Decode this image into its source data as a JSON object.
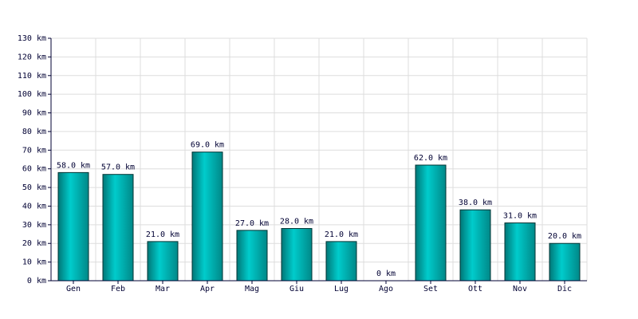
{
  "chart_data": {
    "type": "bar",
    "categories": [
      "Gen",
      "Feb",
      "Mar",
      "Apr",
      "Mag",
      "Giu",
      "Lug",
      "Ago",
      "Set",
      "Ott",
      "Nov",
      "Dic"
    ],
    "values": [
      58,
      57,
      21,
      69,
      27,
      28,
      21,
      0,
      62,
      38,
      31,
      20
    ],
    "value_labels": [
      "58.0 km",
      "57.0 km",
      "21.0 km",
      "69.0 km",
      "27.0 km",
      "28.0 km",
      "21.0 km",
      "0 km",
      "62.0 km",
      "38.0 km",
      "31.0 km",
      "20.0 km"
    ],
    "color": "#00cccc",
    "ylim": [
      0,
      130
    ],
    "yticks": [
      {
        "value": 0,
        "label": "0 km"
      },
      {
        "value": 10,
        "label": "10 km"
      },
      {
        "value": 20,
        "label": "20 km"
      },
      {
        "value": 30,
        "label": "30 km"
      },
      {
        "value": 40,
        "label": "40 km"
      },
      {
        "value": 50,
        "label": "50 km"
      },
      {
        "value": 60,
        "label": "60 km"
      },
      {
        "value": 70,
        "label": "70 km"
      },
      {
        "value": 80,
        "label": "80 km"
      },
      {
        "value": 90,
        "label": "90 km"
      },
      {
        "value": 100,
        "label": "100 km"
      },
      {
        "value": 110,
        "label": "110 km"
      },
      {
        "value": 120,
        "label": "120 km"
      },
      {
        "value": 130,
        "label": "130 km"
      }
    ],
    "grid": true
  }
}
